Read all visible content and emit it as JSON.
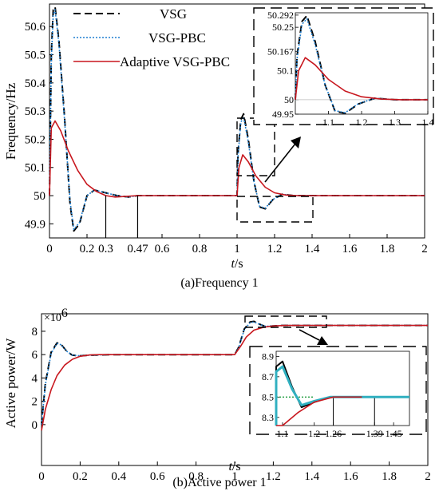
{
  "chart_data": [
    {
      "type": "line",
      "caption": "(a)Frequency 1",
      "xlabel_italic": "t",
      "xlabel_rest": "/s",
      "ylabel": "Frequency/Hz",
      "xlim": [
        0,
        2
      ],
      "ylim": [
        49.85,
        50.68
      ],
      "xticks": [
        "0",
        "0.2",
        "0.3",
        "0.47",
        "0.6",
        "0.8",
        "1",
        "1.2",
        "1.4",
        "1.6",
        "1.8",
        "2"
      ],
      "xtick_values": [
        0,
        0.2,
        0.3,
        0.47,
        0.6,
        0.8,
        1,
        1.2,
        1.4,
        1.6,
        1.8,
        2
      ],
      "yticks": [
        "49.9",
        "50",
        "50.1",
        "50.2",
        "50.3",
        "50.4",
        "50.5",
        "50.6"
      ],
      "ytick_values": [
        49.9,
        50,
        50.1,
        50.2,
        50.3,
        50.4,
        50.5,
        50.6
      ],
      "legend": [
        "VSG",
        "VSG-PBC",
        "Adaptive VSG-PBC"
      ],
      "series": [
        {
          "name": "VSG",
          "x": [
            0,
            0.01,
            0.02,
            0.03,
            0.05,
            0.08,
            0.11,
            0.13,
            0.16,
            0.2,
            0.24,
            0.3,
            0.36,
            0.42,
            0.47,
            0.55,
            0.7,
            1.0,
            1.005,
            1.02,
            1.035,
            1.06,
            1.09,
            1.12,
            1.15,
            1.19,
            1.24,
            1.3,
            1.4,
            2.0
          ],
          "y": [
            50,
            50.5,
            50.66,
            50.67,
            50.55,
            50.28,
            49.97,
            49.875,
            49.9,
            50.0,
            50.02,
            50.01,
            50.0,
            49.995,
            50.0,
            50.0,
            50.0,
            50.0,
            50.15,
            50.27,
            50.29,
            50.2,
            50.05,
            49.96,
            49.953,
            49.985,
            50.005,
            50.0,
            50.0,
            50.0
          ]
        },
        {
          "name": "VSG-PBC",
          "x": [
            0,
            0.01,
            0.02,
            0.03,
            0.05,
            0.08,
            0.11,
            0.13,
            0.16,
            0.2,
            0.24,
            0.3,
            0.36,
            0.42,
            0.47,
            0.55,
            0.7,
            1.0,
            1.005,
            1.02,
            1.035,
            1.06,
            1.09,
            1.12,
            1.15,
            1.19,
            1.24,
            1.3,
            1.4,
            2.0
          ],
          "y": [
            50,
            50.48,
            50.64,
            50.66,
            50.54,
            50.27,
            49.98,
            49.88,
            49.905,
            50.0,
            50.02,
            50.01,
            50.0,
            49.995,
            50.0,
            50.0,
            50.0,
            50.0,
            50.14,
            50.26,
            50.28,
            50.19,
            50.05,
            49.962,
            49.955,
            49.986,
            50.005,
            50.0,
            50.0,
            50.0
          ]
        },
        {
          "name": "Adaptive VSG-PBC",
          "x": [
            0,
            0.01,
            0.03,
            0.06,
            0.1,
            0.15,
            0.2,
            0.25,
            0.3,
            0.35,
            0.4,
            0.47,
            0.6,
            1.0,
            1.01,
            1.03,
            1.06,
            1.1,
            1.15,
            1.2,
            1.26,
            1.32,
            1.4,
            2.0
          ],
          "y": [
            50,
            50.24,
            50.265,
            50.23,
            50.16,
            50.09,
            50.04,
            50.015,
            50.0,
            49.995,
            49.997,
            50.0,
            50.0,
            50.0,
            50.1,
            50.145,
            50.12,
            50.07,
            50.03,
            50.01,
            50.002,
            50.0,
            50.0,
            50.0
          ]
        }
      ],
      "annotations": [
        "0.3",
        "0.47"
      ],
      "inset": {
        "xlim": [
          1.0,
          1.4
        ],
        "ylim": [
          49.95,
          50.3
        ],
        "xticks": [
          "1.1",
          "1.2",
          "1.3",
          "1.4"
        ],
        "xtick_values": [
          1.1,
          1.2,
          1.3,
          1.4
        ],
        "yticks": [
          "50.292",
          "50.25",
          "50.167",
          "50.1",
          "50",
          "49.95"
        ],
        "ytick_values": [
          50.292,
          50.25,
          50.167,
          50.1,
          50,
          49.95
        ]
      }
    },
    {
      "type": "line",
      "caption": "(b)Active power 1",
      "xlabel_italic": "t",
      "xlabel_rest": "/s",
      "ylabel": "Active power/W",
      "scale_label": "×10",
      "scale_exp": "6",
      "xlim": [
        0,
        2
      ],
      "ylim": [
        -3.5,
        9.5
      ],
      "xticks": [
        "0",
        "0.2",
        "0.4",
        "0.6",
        "0.8",
        "1",
        "1.2",
        "1.4",
        "1.6",
        "1.8",
        "2"
      ],
      "xtick_values": [
        0,
        0.2,
        0.4,
        0.6,
        0.8,
        1,
        1.2,
        1.4,
        1.6,
        1.8,
        2
      ],
      "yticks": [
        "0",
        "2",
        "4",
        "6",
        "8"
      ],
      "ytick_values": [
        0,
        2,
        4,
        6,
        8
      ],
      "series": [
        {
          "name": "VSG",
          "x": [
            0,
            0.02,
            0.05,
            0.08,
            0.1,
            0.13,
            0.16,
            0.2,
            0.25,
            0.35,
            0.6,
            1.0,
            1.02,
            1.05,
            1.08,
            1.1,
            1.13,
            1.16,
            1.2,
            1.25,
            1.35,
            1.5,
            2.0
          ],
          "y": [
            0,
            3.5,
            6.2,
            7.0,
            6.9,
            6.3,
            5.95,
            5.9,
            5.95,
            6.0,
            6.0,
            6.0,
            6.6,
            8.2,
            8.8,
            8.85,
            8.6,
            8.4,
            8.45,
            8.5,
            8.5,
            8.5,
            8.5
          ]
        },
        {
          "name": "VSG-PBC",
          "x": [
            0,
            0.02,
            0.05,
            0.08,
            0.1,
            0.13,
            0.16,
            0.2,
            0.25,
            0.35,
            0.6,
            1.0,
            1.02,
            1.05,
            1.08,
            1.1,
            1.13,
            1.16,
            1.2,
            1.25,
            1.35,
            1.5,
            2.0
          ],
          "y": [
            0,
            3.4,
            6.1,
            6.95,
            6.85,
            6.3,
            5.95,
            5.9,
            5.95,
            6.0,
            6.0,
            6.0,
            6.55,
            8.15,
            8.75,
            8.8,
            8.58,
            8.42,
            8.46,
            8.5,
            8.5,
            8.5,
            8.5
          ]
        },
        {
          "name": "Adaptive VSG-PBC",
          "x": [
            0,
            0.02,
            0.05,
            0.08,
            0.12,
            0.16,
            0.2,
            0.25,
            0.3,
            0.6,
            1.0,
            1.03,
            1.06,
            1.1,
            1.15,
            1.2,
            1.26,
            1.35,
            2.0
          ],
          "y": [
            -0.5,
            1.3,
            3.0,
            4.2,
            5.1,
            5.6,
            5.85,
            5.97,
            6.0,
            6.0,
            6.0,
            6.7,
            7.5,
            8.1,
            8.35,
            8.45,
            8.5,
            8.5,
            8.5
          ]
        }
      ],
      "inset": {
        "xlim": [
          1.08,
          1.5
        ],
        "ylim": [
          8.22,
          8.95
        ],
        "xticks": [
          "1.1",
          "1.2",
          "1.26",
          "1.39",
          "1.45"
        ],
        "xtick_values": [
          1.1,
          1.2,
          1.26,
          1.39,
          1.45
        ],
        "yticks": [
          "8.9",
          "8.7",
          "8.5",
          "8.3"
        ],
        "ytick_values": [
          8.9,
          8.7,
          8.5,
          8.3
        ]
      }
    }
  ],
  "colors": {
    "vsg": "#000000",
    "pbc": "#1f7fd0",
    "adaptive": "#c8171e",
    "inset_fill": "#30b0c0",
    "ref_dot": "#1a9a3a"
  }
}
